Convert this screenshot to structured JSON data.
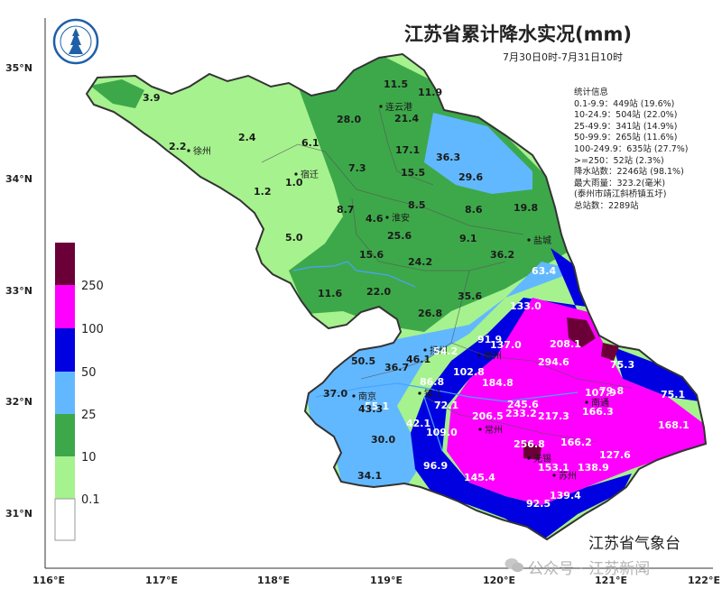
{
  "title": "江苏省累计降水实况(mm)",
  "subtitle": "7月30日0时-7月31日10时",
  "stats": [
    "统计信息",
    "0.1-9.9：449站 (19.6%)",
    "10-24.9：504站 (22.0%)",
    "25-49.9：341站 (14.9%)",
    "50-99.9：265站 (11.6%)",
    "100-249.9：635站 (27.7%)",
    ">=250：52站 (2.3%)",
    "降水站数：2246站 (98.1%)",
    "最大雨量：323.2(毫米)",
    "(泰州市靖江斜桥镇五圩)",
    "总站数：2289站"
  ],
  "source": "江苏省气象台",
  "watermark": "公众号 · 江苏新闻",
  "logo_icon": "jiangsu-meteorological-logo",
  "x_axis": {
    "labels": [
      "116°E",
      "117°E",
      "118°E",
      "119°E",
      "120°E",
      "121°E",
      "122°E"
    ]
  },
  "y_axis": {
    "labels": [
      "35°N",
      "34°N",
      "33°N",
      "32°N",
      "31°N"
    ]
  },
  "legend": {
    "labels": [
      "250",
      "100",
      "50",
      "25",
      "10",
      "0.1"
    ],
    "colors": [
      "#6b0038",
      "#ff00ff",
      "#0000e0",
      "#62b8ff",
      "#3da84a",
      "#a6f28e",
      "#ffffff"
    ]
  },
  "cities": [
    "徐州",
    "宿迁",
    "连云港",
    "淮安",
    "盐城",
    "扬州",
    "南京",
    "镇江",
    "泰州",
    "南通",
    "常州",
    "无锡",
    "苏州"
  ],
  "values": [
    {
      "t": "3.9",
      "c": "dark"
    },
    {
      "t": "2.2",
      "c": "dark"
    },
    {
      "t": "2.4",
      "c": "dark"
    },
    {
      "t": "6.1",
      "c": "dark"
    },
    {
      "t": "11.5",
      "c": "dark"
    },
    {
      "t": "11.9",
      "c": "dark"
    },
    {
      "t": "28.0",
      "c": "dark"
    },
    {
      "t": "21.4",
      "c": "dark"
    },
    {
      "t": "17.1",
      "c": "dark"
    },
    {
      "t": "7.3",
      "c": "dark"
    },
    {
      "t": "15.5",
      "c": "dark"
    },
    {
      "t": "36.3",
      "c": "dark"
    },
    {
      "t": "29.6",
      "c": "dark"
    },
    {
      "t": "1.0",
      "c": "dark"
    },
    {
      "t": "1.2",
      "c": "dark"
    },
    {
      "t": "8.7",
      "c": "dark"
    },
    {
      "t": "8.5",
      "c": "dark"
    },
    {
      "t": "8.6",
      "c": "dark"
    },
    {
      "t": "19.8",
      "c": "dark"
    },
    {
      "t": "4.6",
      "c": "dark"
    },
    {
      "t": "5.0",
      "c": "dark"
    },
    {
      "t": "25.6",
      "c": "dark"
    },
    {
      "t": "9.1",
      "c": "dark"
    },
    {
      "t": "15.6",
      "c": "dark"
    },
    {
      "t": "24.2",
      "c": "dark"
    },
    {
      "t": "36.2",
      "c": "dark"
    },
    {
      "t": "63.4",
      "c": "light"
    },
    {
      "t": "11.6",
      "c": "dark"
    },
    {
      "t": "22.0",
      "c": "dark"
    },
    {
      "t": "35.6",
      "c": "dark"
    },
    {
      "t": "133.0",
      "c": "light"
    },
    {
      "t": "26.8",
      "c": "dark"
    },
    {
      "t": "91.9",
      "c": "light"
    },
    {
      "t": "137.0",
      "c": "light"
    },
    {
      "t": "208.1",
      "c": "light"
    },
    {
      "t": "54.2",
      "c": "light"
    },
    {
      "t": "50.5",
      "c": "dark"
    },
    {
      "t": "46.1",
      "c": "dark"
    },
    {
      "t": "36.7",
      "c": "dark"
    },
    {
      "t": "294.6",
      "c": "light"
    },
    {
      "t": "75.3",
      "c": "light"
    },
    {
      "t": "102.8",
      "c": "light"
    },
    {
      "t": "86.8",
      "c": "light"
    },
    {
      "t": "184.8",
      "c": "light"
    },
    {
      "t": "37.0",
      "c": "dark"
    },
    {
      "t": "107.9",
      "c": "light"
    },
    {
      "t": "79.8",
      "c": "light"
    },
    {
      "t": "75.1",
      "c": "light"
    },
    {
      "t": "55.1",
      "c": "light"
    },
    {
      "t": "72.1",
      "c": "light"
    },
    {
      "t": "245.6",
      "c": "light"
    },
    {
      "t": "43.3",
      "c": "dark"
    },
    {
      "t": "166.3",
      "c": "light"
    },
    {
      "t": "206.5",
      "c": "light"
    },
    {
      "t": "233.2",
      "c": "light"
    },
    {
      "t": "217.3",
      "c": "light"
    },
    {
      "t": "168.1",
      "c": "light"
    },
    {
      "t": "42.1",
      "c": "light"
    },
    {
      "t": "109.0",
      "c": "light"
    },
    {
      "t": "30.0",
      "c": "dark"
    },
    {
      "t": "256.8",
      "c": "light"
    },
    {
      "t": "166.2",
      "c": "light"
    },
    {
      "t": "127.6",
      "c": "light"
    },
    {
      "t": "96.9",
      "c": "light"
    },
    {
      "t": "153.1",
      "c": "light"
    },
    {
      "t": "138.9",
      "c": "light"
    },
    {
      "t": "34.1",
      "c": "dark"
    },
    {
      "t": "145.4",
      "c": "light"
    },
    {
      "t": "139.4",
      "c": "light"
    },
    {
      "t": "92.5",
      "c": "light"
    }
  ]
}
